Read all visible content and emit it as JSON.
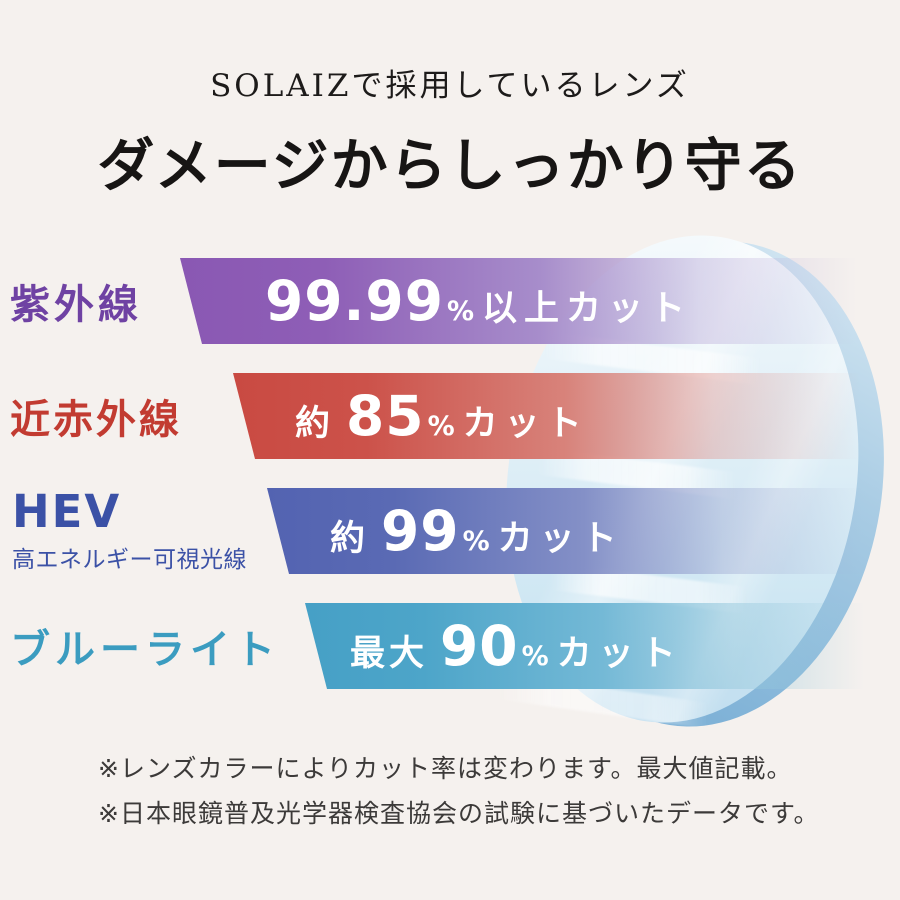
{
  "background_color": "#f5f1ee",
  "header": {
    "subtitle": "SOLAIZで採用しているレンズ",
    "title": "ダメージからしっかり守る"
  },
  "rows": [
    {
      "id": "uv",
      "label": "紫外線",
      "prefix": "",
      "value": "99.99",
      "unit": "%",
      "suffix": "以上カット",
      "label_color": "#6f42a3",
      "bar_color": "#8a58b3"
    },
    {
      "id": "near-infrared",
      "label": "近赤外線",
      "prefix": "約",
      "value": "85",
      "unit": "%",
      "suffix": "カット",
      "label_color": "#c23b31",
      "bar_color": "#c94a42"
    },
    {
      "id": "hev",
      "label": "HEV",
      "sublabel": "高エネルギー可視光線",
      "prefix": "約",
      "value": "99",
      "unit": "%",
      "suffix": "カット",
      "label_color": "#3b51a6",
      "bar_color": "#5363b1"
    },
    {
      "id": "blue-light",
      "label": "ブルーライト",
      "prefix": "最大",
      "value": "90",
      "unit": "%",
      "suffix": "カット",
      "label_color": "#3b9cc0",
      "bar_color": "#46a0c6"
    }
  ],
  "lens": {
    "body_color": "#dcedf6",
    "rim_color": "#7fb2d7"
  },
  "notes": [
    "※レンズカラーによりカット率は変わります。最大値記載。",
    "※日本眼鏡普及光学器検査協会の試験に基づいたデータです。"
  ]
}
